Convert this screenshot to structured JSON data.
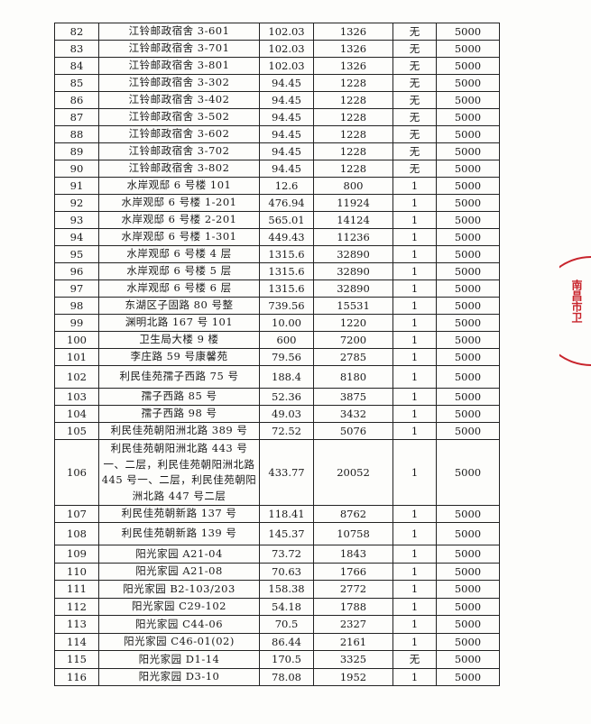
{
  "table": {
    "rows": [
      {
        "no": "82",
        "address": "江铃邮政宿舍 3-601",
        "area": "102.03",
        "amount": "1326",
        "count": "无",
        "fee": "5000"
      },
      {
        "no": "83",
        "address": "江铃邮政宿舍 3-701",
        "area": "102.03",
        "amount": "1326",
        "count": "无",
        "fee": "5000"
      },
      {
        "no": "84",
        "address": "江铃邮政宿舍 3-801",
        "area": "102.03",
        "amount": "1326",
        "count": "无",
        "fee": "5000"
      },
      {
        "no": "85",
        "address": "江铃邮政宿舍 3-302",
        "area": "94.45",
        "amount": "1228",
        "count": "无",
        "fee": "5000"
      },
      {
        "no": "86",
        "address": "江铃邮政宿舍 3-402",
        "area": "94.45",
        "amount": "1228",
        "count": "无",
        "fee": "5000"
      },
      {
        "no": "87",
        "address": "江铃邮政宿舍 3-502",
        "area": "94.45",
        "amount": "1228",
        "count": "无",
        "fee": "5000"
      },
      {
        "no": "88",
        "address": "江铃邮政宿舍 3-602",
        "area": "94.45",
        "amount": "1228",
        "count": "无",
        "fee": "5000"
      },
      {
        "no": "89",
        "address": "江铃邮政宿舍 3-702",
        "area": "94.45",
        "amount": "1228",
        "count": "无",
        "fee": "5000"
      },
      {
        "no": "90",
        "address": "江铃邮政宿舍 3-802",
        "area": "94.45",
        "amount": "1228",
        "count": "无",
        "fee": "5000"
      },
      {
        "no": "91",
        "address": "水岸观邸 6 号楼 101",
        "area": "12.6",
        "amount": "800",
        "count": "1",
        "fee": "5000"
      },
      {
        "no": "92",
        "address": "水岸观邸 6 号楼 1-201",
        "area": "476.94",
        "amount": "11924",
        "count": "1",
        "fee": "5000"
      },
      {
        "no": "93",
        "address": "水岸观邸 6 号楼 2-201",
        "area": "565.01",
        "amount": "14124",
        "count": "1",
        "fee": "5000"
      },
      {
        "no": "94",
        "address": "水岸观邸 6 号楼 1-301",
        "area": "449.43",
        "amount": "11236",
        "count": "1",
        "fee": "5000"
      },
      {
        "no": "95",
        "address": "水岸观邸 6 号楼 4 层",
        "area": "1315.6",
        "amount": "32890",
        "count": "1",
        "fee": "5000"
      },
      {
        "no": "96",
        "address": "水岸观邸 6 号楼 5 层",
        "area": "1315.6",
        "amount": "32890",
        "count": "1",
        "fee": "5000"
      },
      {
        "no": "97",
        "address": "水岸观邸 6 号楼 6 层",
        "area": "1315.6",
        "amount": "32890",
        "count": "1",
        "fee": "5000"
      },
      {
        "no": "98",
        "address": "东湖区子固路 80 号整",
        "area": "739.56",
        "amount": "15531",
        "count": "1",
        "fee": "5000"
      },
      {
        "no": "99",
        "address": "渊明北路 167 号 101",
        "area": "10.00",
        "amount": "1220",
        "count": "1",
        "fee": "5000"
      },
      {
        "no": "100",
        "address": "卫生局大楼 9 楼",
        "area": "600",
        "amount": "7200",
        "count": "1",
        "fee": "5000"
      },
      {
        "no": "101",
        "address": "李庄路 59 号康馨苑",
        "area": "79.56",
        "amount": "2785",
        "count": "1",
        "fee": "5000"
      },
      {
        "no": "102",
        "address": "利民佳苑孺子西路 75 号",
        "area": "188.4",
        "amount": "8180",
        "count": "1",
        "fee": "5000"
      },
      {
        "no": "103",
        "address": "孺子西路 85 号",
        "area": "52.36",
        "amount": "3875",
        "count": "1",
        "fee": "5000"
      },
      {
        "no": "104",
        "address": "孺子西路 98 号",
        "area": "49.03",
        "amount": "3432",
        "count": "1",
        "fee": "5000"
      },
      {
        "no": "105",
        "address": "利民佳苑朝阳洲北路 389 号",
        "area": "72.52",
        "amount": "5076",
        "count": "1",
        "fee": "5000"
      },
      {
        "no": "106",
        "address": "利民佳苑朝阳洲北路 443 号一、二层，利民佳苑朝阳洲北路 445 号一、二层，利民佳苑朝阳洲北路 447 号二层",
        "area": "433.77",
        "amount": "20052",
        "count": "1",
        "fee": "5000"
      },
      {
        "no": "107",
        "address": "利民佳苑朝新路 137 号",
        "area": "118.41",
        "amount": "8762",
        "count": "1",
        "fee": "5000"
      },
      {
        "no": "108",
        "address": "利民佳苑朝新路 139 号",
        "area": "145.37",
        "amount": "10758",
        "count": "1",
        "fee": "5000"
      },
      {
        "no": "109",
        "address": "阳光家园 A21-04",
        "area": "73.72",
        "amount": "1843",
        "count": "1",
        "fee": "5000"
      },
      {
        "no": "110",
        "address": "阳光家园 A21-08",
        "area": "70.63",
        "amount": "1766",
        "count": "1",
        "fee": "5000"
      },
      {
        "no": "111",
        "address": "阳光家园 B2-103/203",
        "area": "158.38",
        "amount": "2772",
        "count": "1",
        "fee": "5000"
      },
      {
        "no": "112",
        "address": "阳光家园 C29-102",
        "area": "54.18",
        "amount": "1788",
        "count": "1",
        "fee": "5000"
      },
      {
        "no": "113",
        "address": "阳光家园 C44-06",
        "area": "70.5",
        "amount": "2327",
        "count": "1",
        "fee": "5000"
      },
      {
        "no": "114",
        "address": "阳光家园 C46-01(02)",
        "area": "86.44",
        "amount": "2161",
        "count": "1",
        "fee": "5000"
      },
      {
        "no": "115",
        "address": "阳光家园 D1-14",
        "area": "170.5",
        "amount": "3325",
        "count": "无",
        "fee": "5000"
      },
      {
        "no": "116",
        "address": "阳光家园 D3-10",
        "area": "78.08",
        "amount": "1952",
        "count": "1",
        "fee": "5000"
      }
    ]
  },
  "stamp": {
    "text": "南昌市卫",
    "color": "#c8242c"
  }
}
